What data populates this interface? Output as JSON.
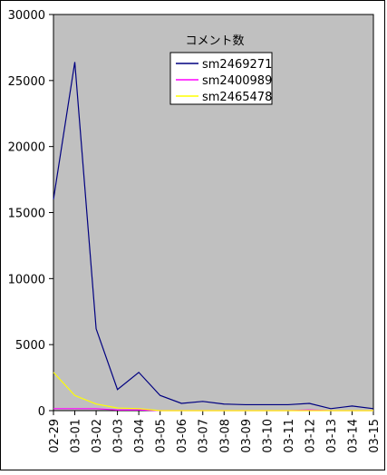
{
  "chart_data": {
    "type": "line",
    "legend": {
      "title": "コメント数",
      "placement": "top-right"
    },
    "categories": [
      "02-29",
      "03-01",
      "03-02",
      "03-03",
      "03-04",
      "03-05",
      "03-06",
      "03-07",
      "03-08",
      "03-09",
      "03-10",
      "03-11",
      "03-12",
      "03-13",
      "03-14",
      "03-15"
    ],
    "ylim": [
      0,
      30000
    ],
    "yticks": [
      0,
      5000,
      10000,
      15000,
      20000,
      25000,
      30000
    ],
    "grid": false,
    "series": [
      {
        "name": "sm2469271",
        "color": "#000080",
        "values": [
          16000,
          26400,
          6200,
          1600,
          2900,
          1150,
          550,
          700,
          500,
          450,
          450,
          450,
          550,
          150,
          350,
          150
        ]
      },
      {
        "name": "sm2400989",
        "color": "#ff00ff",
        "values": [
          150,
          150,
          150,
          50,
          50,
          0,
          0,
          0,
          0,
          0,
          0,
          0,
          50,
          0,
          0,
          0
        ]
      },
      {
        "name": "sm2465478",
        "color": "#ffff00",
        "values": [
          2900,
          1150,
          500,
          200,
          150,
          0,
          0,
          0,
          0,
          0,
          0,
          0,
          0,
          0,
          0,
          0
        ]
      }
    ],
    "plot_bg": "#c0c0c0",
    "page_bg": "#ffffff"
  }
}
